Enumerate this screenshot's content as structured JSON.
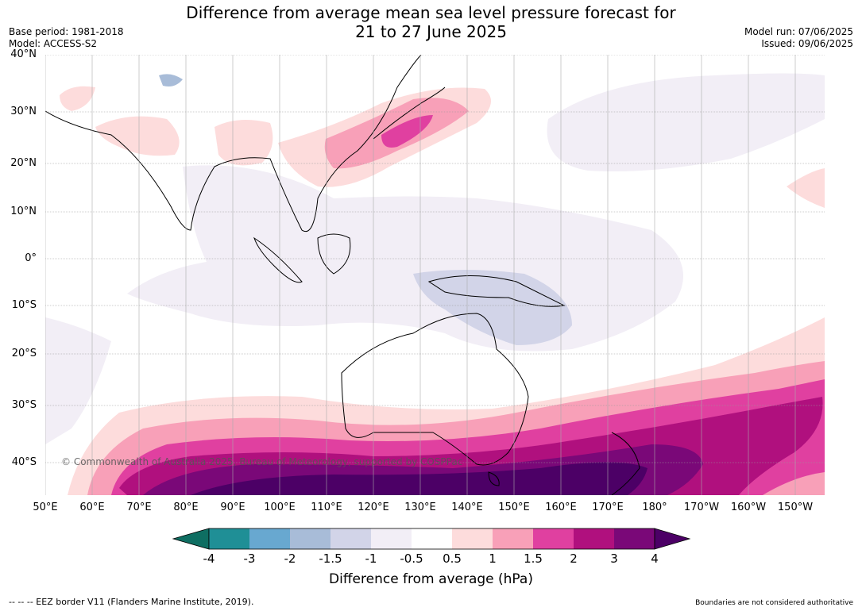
{
  "title_line1": "Difference from average mean sea level pressure forecast for",
  "title_line2": "21 to 27 June 2025",
  "meta_left": {
    "base_period": "Base period: 1981-2018",
    "model": "Model: ACCESS-S2"
  },
  "meta_right": {
    "model_run": "Model run: 07/06/2025",
    "issued": "Issued: 09/06/2025"
  },
  "lat_labels": [
    "40°N",
    "30°N",
    "20°N",
    "10°N",
    "0°",
    "10°S",
    "20°S",
    "30°S",
    "40°S"
  ],
  "lon_labels": [
    "50°E",
    "60°E",
    "70°E",
    "80°E",
    "90°E",
    "100°E",
    "110°E",
    "120°E",
    "130°E",
    "140°E",
    "150°E",
    "160°E",
    "170°E",
    "180°",
    "170°W",
    "160°W",
    "150°W"
  ],
  "copyright": "© Commonwealth of Australia 2025, Bureau of Meteorology, supported by COSPPac",
  "colorbar": {
    "ticks": [
      "-4",
      "-3",
      "-2",
      "-1.5",
      "-1",
      "-0.5",
      "0.5",
      "1",
      "1.5",
      "2",
      "3",
      "4"
    ],
    "colors": [
      "#0e6e62",
      "#1f8f96",
      "#68a8d0",
      "#a8bcd8",
      "#d2d4e8",
      "#f2eef6",
      "#ffffff",
      "#fddcdc",
      "#f8a0b8",
      "#e040a0",
      "#b0107e",
      "#7a0878",
      "#4c0066"
    ],
    "label": "Difference from average (hPa)"
  },
  "footer": {
    "eez": "--  --  -- EEZ border V11 (Flanders Marine Institute, 2019).",
    "boundaries": "Boundaries are not considered authoritative"
  }
}
